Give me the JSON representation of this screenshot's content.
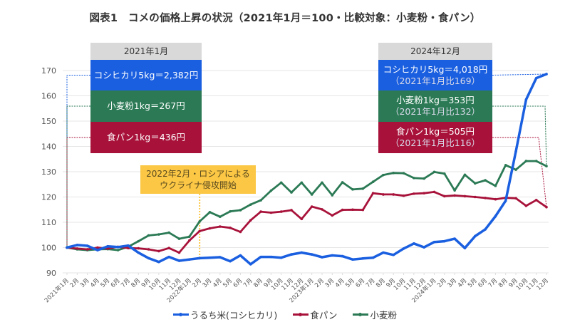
{
  "title": "図表1　コメの価格上昇の状況（2021年1月＝100・比較対象：小麦粉・食パン）",
  "left_box": {
    "header": "2021年1月",
    "rice": "コシヒカリ5kg＝2,382円",
    "flour": "小麦粉1kg＝267円",
    "bread": "食パン1kg＝436円"
  },
  "right_box": {
    "header": "2024年12月",
    "rice": "コシヒカリ5kg＝4,018円",
    "rice_sub": "（2021年1月比169）",
    "flour": "小麦粉1kg＝353円",
    "flour_sub": "（2021年1月比132）",
    "bread": "食パン1kg＝505円",
    "bread_sub": "（2021年1月比116）"
  },
  "annotation": {
    "line1": "2022年2月・ロシアによる",
    "line2": "ウクライナ侵攻開始"
  },
  "colors": {
    "rice": "#1a5fe0",
    "bread": "#a8123a",
    "flour": "#2b7a55",
    "annotation": "#fbc744",
    "grid": "#e6e6e6"
  },
  "chart_data": {
    "type": "line",
    "title": "図表1　コメの価格上昇の状況（2021年1月＝100・比較対象：小麦粉・食パン）",
    "xlabel": "",
    "ylabel": "",
    "ylim": [
      90,
      170
    ],
    "yticks": [
      90,
      100,
      110,
      120,
      130,
      140,
      150,
      160,
      170
    ],
    "grid": true,
    "legend_position": "bottom",
    "x": [
      "2021年1月",
      "2月",
      "3月",
      "4月",
      "5月",
      "6月",
      "7月",
      "8月",
      "9月",
      "10月",
      "11月",
      "12月",
      "2022年1月",
      "2月",
      "3月",
      "4月",
      "5月",
      "6月",
      "7月",
      "8月",
      "9月",
      "10月",
      "11月",
      "12月",
      "2023年1月",
      "2月",
      "3月",
      "4月",
      "5月",
      "6月",
      "7月",
      "8月",
      "9月",
      "10月",
      "11月",
      "12月",
      "2024年1月",
      "2月",
      "3月",
      "4月",
      "5月",
      "6月",
      "7月",
      "8月",
      "9月",
      "10月",
      "11月",
      "12月"
    ],
    "series": [
      {
        "name": "うるち米(コシヒカリ)",
        "key": "rice",
        "values": [
          100,
          101,
          100.7,
          99,
          100.5,
          100.2,
          100.8,
          98,
          95.8,
          94.3,
          96.3,
          94.8,
          95.3,
          95.8,
          96,
          96.2,
          94.6,
          96.9,
          93.4,
          96.3,
          96.3,
          96,
          97.3,
          98,
          97.3,
          96.2,
          96.9,
          96.6,
          95.3,
          95.7,
          96,
          98,
          97.1,
          99.6,
          101.6,
          100.1,
          102.2,
          102.5,
          103.5,
          99.8,
          104.5,
          107.2,
          112.4,
          118.5,
          138,
          158.5,
          167,
          168.6
        ]
      },
      {
        "name": "食パン",
        "key": "bread",
        "values": [
          100,
          99.6,
          99.3,
          100,
          99.6,
          100.3,
          99.8,
          99.7,
          99.3,
          98.6,
          99.8,
          98,
          102.8,
          106.5,
          107.6,
          108.3,
          107.8,
          106.2,
          110.8,
          114.2,
          113.8,
          114.2,
          114.8,
          111.3,
          116.2,
          115.1,
          112.7,
          114.9,
          115,
          114.9,
          121.5,
          121,
          121,
          120.5,
          121.3,
          121.5,
          122,
          120.3,
          120.6,
          120.3,
          120,
          119.6,
          119.1,
          119.7,
          119.5,
          116.5,
          118.8,
          116
        ]
      },
      {
        "name": "小麦粉",
        "key": "flour",
        "values": [
          100,
          99.3,
          99,
          99.3,
          99.4,
          99,
          100.3,
          102.5,
          104.8,
          105.2,
          105.9,
          103.5,
          104.3,
          110.3,
          114,
          112.2,
          114.3,
          114.8,
          117,
          118.7,
          122.5,
          125.7,
          121.8,
          125.7,
          121,
          125.7,
          120.7,
          125.8,
          123,
          123.3,
          126,
          128.7,
          129.5,
          129.4,
          127.5,
          127.3,
          129.9,
          129.2,
          122.6,
          128.8,
          125.4,
          126.6,
          124.4,
          132.6,
          130.8,
          134.2,
          134.2,
          132.2
        ]
      }
    ],
    "reference_lines": {
      "base_month": "2021年1月",
      "end_month": "2024年12月",
      "annotation_month": "2022年2月"
    }
  },
  "legend": [
    {
      "key": "rice",
      "label": "うるち米(コシヒカリ)"
    },
    {
      "key": "bread",
      "label": "食パン"
    },
    {
      "key": "flour",
      "label": "小麦粉"
    }
  ]
}
